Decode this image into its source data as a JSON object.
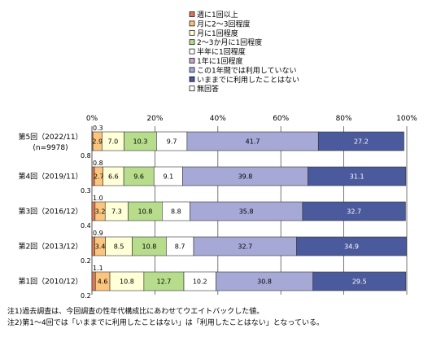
{
  "chart_data": {
    "type": "bar",
    "orientation": "horizontal",
    "stacked": true,
    "xlim": [
      0,
      100
    ],
    "x_ticks": [
      "0%",
      "20%",
      "40%",
      "60%",
      "80%",
      "100%"
    ],
    "legend_placement": "top",
    "categories": [
      {
        "line1": "第5回（2022/11）",
        "line2": "(n=9978)"
      },
      {
        "line1": "第4回（2019/11）",
        "line2": ""
      },
      {
        "line1": "第3回（2016/12）",
        "line2": ""
      },
      {
        "line1": "第2回（2013/12）",
        "line2": ""
      },
      {
        "line1": "第1回（2010/12）",
        "line2": ""
      }
    ],
    "series": [
      {
        "name": "週に1回以上",
        "color": "#d97a55",
        "values": [
          0.3,
          0.8,
          1.0,
          0.9,
          1.1
        ]
      },
      {
        "name": "月に2～3回程度",
        "color": "#fbc57e",
        "values": [
          2.9,
          2.7,
          3.2,
          3.4,
          4.6
        ]
      },
      {
        "name": "月に1回程度",
        "color": "#ffffd8",
        "values": [
          7.0,
          6.6,
          7.3,
          8.5,
          10.8
        ]
      },
      {
        "name": "2～3か月に1回程度",
        "color": "#b6dc8c",
        "values": [
          10.3,
          9.6,
          10.8,
          10.8,
          12.7
        ]
      },
      {
        "name": "半年に1回程度",
        "color": "#ffffff",
        "values": [
          9.7,
          9.1,
          8.8,
          8.7,
          10.2
        ]
      },
      {
        "name": "1年に1回程度",
        "color": "#c4a8c8",
        "values": [
          0.0,
          0.0,
          0.0,
          0.0,
          0.0
        ]
      },
      {
        "name": "この1年間では利用していない",
        "color": "#a6a9d6",
        "values": [
          41.7,
          39.8,
          35.8,
          32.7,
          30.8
        ]
      },
      {
        "name": "いままでに利用したことはない",
        "color": "#4a5a9c",
        "values": [
          27.2,
          31.1,
          32.7,
          34.9,
          29.5
        ]
      },
      {
        "name": "無回答",
        "color": "#ffffff",
        "values": [
          0.0,
          0.0,
          0.0,
          0.0,
          0.0
        ]
      }
    ],
    "outside_labels_above": [
      "0.3",
      "0.8",
      "1.0",
      "0.9",
      "1.1"
    ],
    "outside_labels_below": [
      "0.8",
      "0.3",
      "0.4",
      "0.2",
      "0.2"
    ]
  },
  "notes": [
    "注1)過去調査は、今回調査の性年代構成比にあわせてウエイトバックした値。",
    "注2)第1～4回では「いままでに利用したことはない」は「利用したことはない」となっている。"
  ]
}
